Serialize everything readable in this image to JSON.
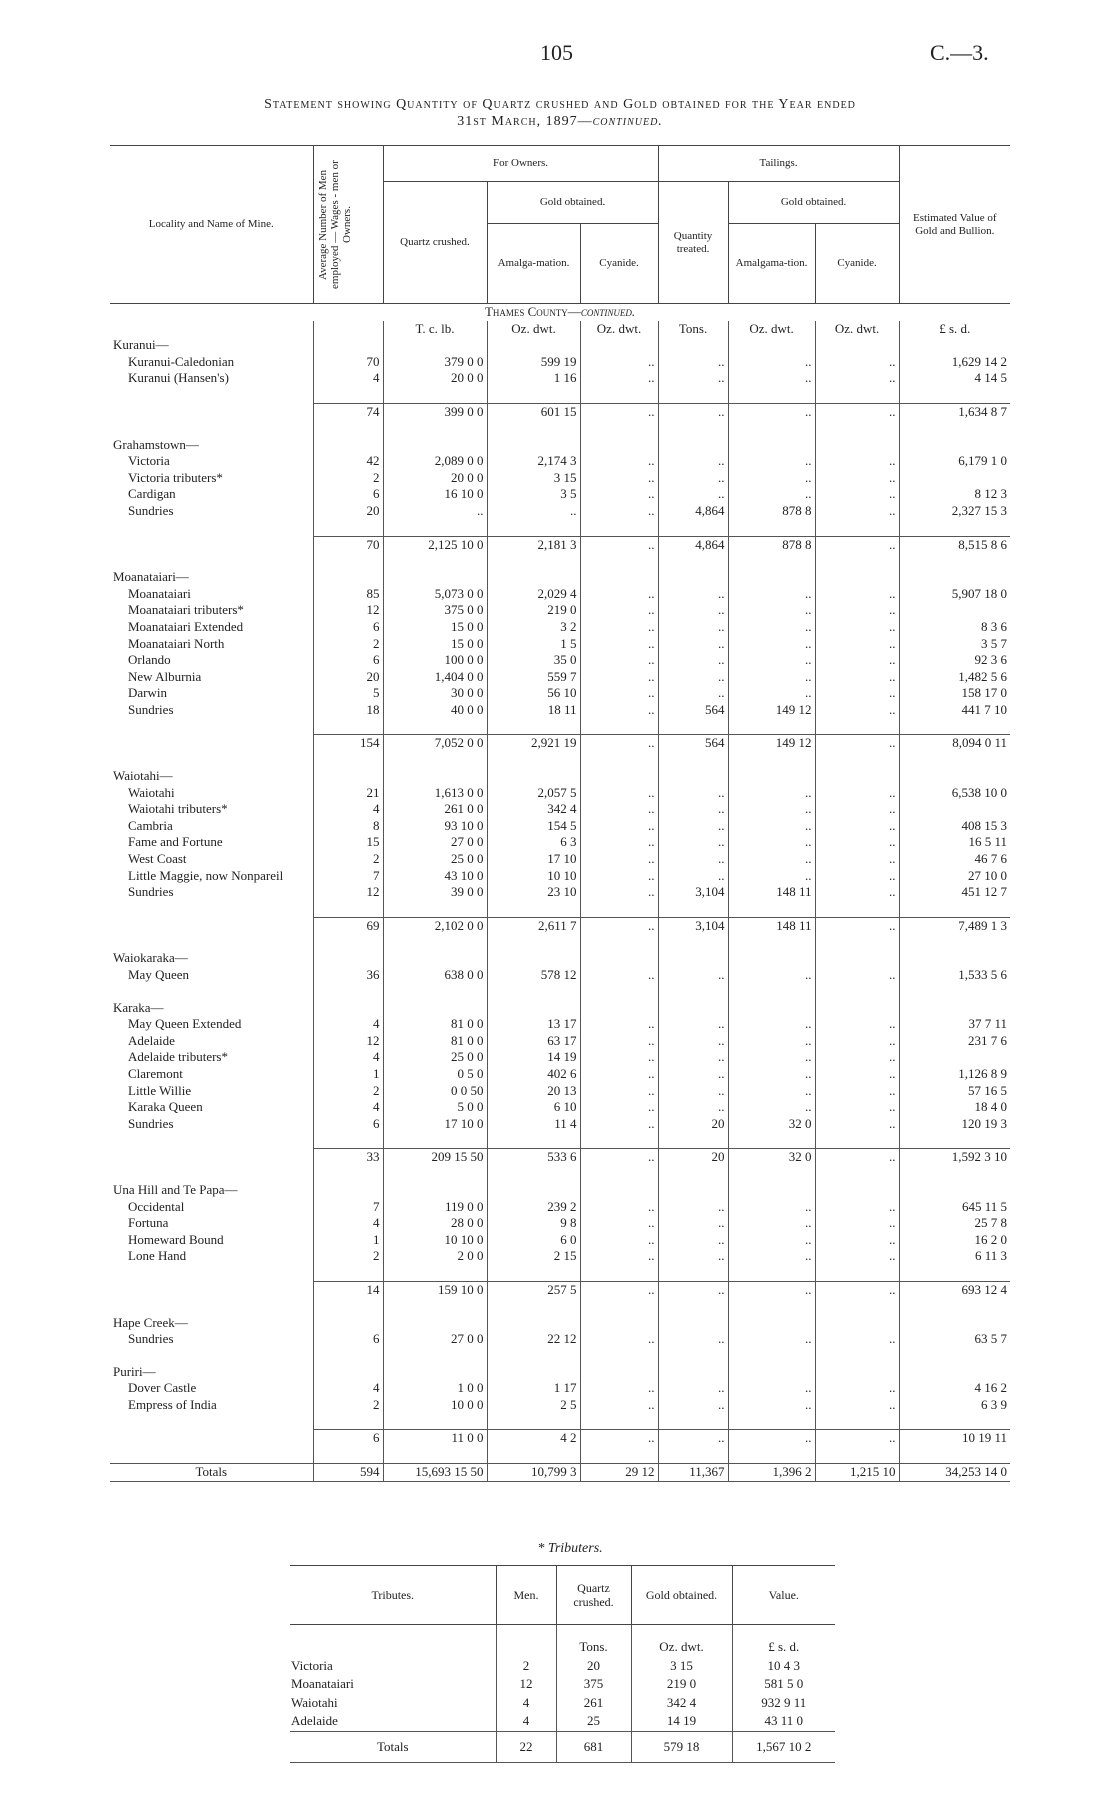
{
  "header": {
    "page_number": "105",
    "code": "C.—3.",
    "title": "Statement showing Quantity of Quartz crushed and Gold obtained for the Year ended",
    "title_date": "31st March, 1897—",
    "title_continued": "continued."
  },
  "table": {
    "headers": {
      "locality": "Locality and Name of Mine.",
      "men": "Average Number of Men employed — Wages - men or Owners.",
      "for_owners": "For Owners.",
      "quartz_crushed": "Quartz crushed.",
      "gold_obtained": "Gold obtained.",
      "amalgamation": "Amalga-mation.",
      "cyanide": "Cyanide.",
      "tailings": "Tailings.",
      "quantity_treated": "Quantity treated.",
      "tail_gold_obtained": "Gold obtained.",
      "tail_amalgamation": "Amalgama-tion.",
      "tail_cyanide": "Cyanide.",
      "estimated_value": "Estimated Value of Gold and Bullion."
    },
    "section": "Thames County—",
    "section_continued": "continued.",
    "units": [
      "T. c. lb.",
      "Oz. dwt.",
      "Oz. dwt.",
      "Tons.",
      "Oz. dwt.",
      "Oz. dwt.",
      "£ s. d."
    ],
    "groups": [
      {
        "name": "Kuranui—",
        "rows": [
          [
            "Kuranui-Caledonian",
            "70",
            "379 0 0",
            "599 19",
            "..",
            "..",
            "..",
            "..",
            "1,629 14 2"
          ],
          [
            "Kuranui (Hansen's)",
            "4",
            "20 0 0",
            "1 16",
            "..",
            "..",
            "..",
            "..",
            "4 14 5"
          ]
        ],
        "subtotal": [
          "74",
          "399 0 0",
          "601 15",
          "..",
          "..",
          "..",
          "..",
          "1,634 8 7"
        ]
      },
      {
        "name": "Grahamstown—",
        "rows": [
          [
            "Victoria",
            "42",
            "2,089 0 0",
            "2,174 3",
            "..",
            "..",
            "..",
            "..",
            "6,179 1 0"
          ],
          [
            "Victoria tributers*",
            "2",
            "20 0 0",
            "3 15",
            "..",
            "..",
            "..",
            "..",
            null
          ],
          [
            "Cardigan",
            "6",
            "16 10 0",
            "3 5",
            "..",
            "..",
            "..",
            "..",
            "8 12 3"
          ],
          [
            "Sundries",
            "20",
            "..",
            "..",
            "..",
            "4,864",
            "878 8",
            "..",
            "2,327 15 3"
          ]
        ],
        "subtotal": [
          "70",
          "2,125 10 0",
          "2,181 3",
          "..",
          "4,864",
          "878 8",
          "..",
          "8,515 8 6"
        ]
      },
      {
        "name": "Moanataiari—",
        "rows": [
          [
            "Moanataiari",
            "85",
            "5,073 0 0",
            "2,029 4",
            "..",
            "..",
            "..",
            "..",
            "5,907 18 0"
          ],
          [
            "Moanataiari tributers*",
            "12",
            "375 0 0",
            "219 0",
            "..",
            "..",
            "..",
            "..",
            null
          ],
          [
            "Moanataiari Extended",
            "6",
            "15 0 0",
            "3 2",
            "..",
            "..",
            "..",
            "..",
            "8 3 6"
          ],
          [
            "Moanataiari North",
            "2",
            "15 0 0",
            "1 5",
            "..",
            "..",
            "..",
            "..",
            "3 5 7"
          ],
          [
            "Orlando",
            "6",
            "100 0 0",
            "35 0",
            "..",
            "..",
            "..",
            "..",
            "92 3 6"
          ],
          [
            "New Alburnia",
            "20",
            "1,404 0 0",
            "559 7",
            "..",
            "..",
            "..",
            "..",
            "1,482 5 6"
          ],
          [
            "Darwin",
            "5",
            "30 0 0",
            "56 10",
            "..",
            "..",
            "..",
            "..",
            "158 17 0"
          ],
          [
            "Sundries",
            "18",
            "40 0 0",
            "18 11",
            "..",
            "564",
            "149 12",
            "..",
            "441 7 10"
          ]
        ],
        "subtotal": [
          "154",
          "7,052 0 0",
          "2,921 19",
          "..",
          "564",
          "149 12",
          "..",
          "8,094 0 11"
        ]
      },
      {
        "name": "Waiotahi—",
        "rows": [
          [
            "Waiotahi",
            "21",
            "1,613 0 0",
            "2,057 5",
            "..",
            "..",
            "..",
            "..",
            "6,538 10 0"
          ],
          [
            "Waiotahi tributers*",
            "4",
            "261 0 0",
            "342 4",
            "..",
            "..",
            "..",
            "..",
            null
          ],
          [
            "Cambria",
            "8",
            "93 10 0",
            "154 5",
            "..",
            "..",
            "..",
            "..",
            "408 15 3"
          ],
          [
            "Fame and Fortune",
            "15",
            "27 0 0",
            "6 3",
            "..",
            "..",
            "..",
            "..",
            "16 5 11"
          ],
          [
            "West Coast",
            "2",
            "25 0 0",
            "17 10",
            "..",
            "..",
            "..",
            "..",
            "46 7 6"
          ],
          [
            "Little Maggie, now Nonpareil",
            "7",
            "43 10 0",
            "10 10",
            "..",
            "..",
            "..",
            "..",
            "27 10 0"
          ],
          [
            "Sundries",
            "12",
            "39 0 0",
            "23 10",
            "..",
            "3,104",
            "148 11",
            "..",
            "451 12 7"
          ]
        ],
        "subtotal": [
          "69",
          "2,102 0 0",
          "2,611 7",
          "..",
          "3,104",
          "148 11",
          "..",
          "7,489 1 3"
        ]
      },
      {
        "name": "Waiokaraka—",
        "rows": [
          [
            "May Queen",
            "36",
            "638 0 0",
            "578 12",
            "..",
            "..",
            "..",
            "..",
            "1,533 5 6"
          ]
        ]
      },
      {
        "name": "Karaka—",
        "rows": [
          [
            "May Queen Extended",
            "4",
            "81 0 0",
            "13 17",
            "..",
            "..",
            "..",
            "..",
            "37 7 11"
          ],
          [
            "Adelaide",
            "12",
            "81 0 0",
            "63 17",
            "..",
            "..",
            "..",
            "..",
            "231 7 6"
          ],
          [
            "Adelaide tributers*",
            "4",
            "25 0 0",
            "14 19",
            "..",
            "..",
            "..",
            "..",
            null
          ],
          [
            "Claremont",
            "1",
            "0 5 0",
            "402 6",
            "..",
            "..",
            "..",
            "..",
            "1,126 8 9"
          ],
          [
            "Little Willie",
            "2",
            "0 0 50",
            "20 13",
            "..",
            "..",
            "..",
            "..",
            "57 16 5"
          ],
          [
            "Karaka Queen",
            "4",
            "5 0 0",
            "6 10",
            "..",
            "..",
            "..",
            "..",
            "18 4 0"
          ],
          [
            "Sundries",
            "6",
            "17 10 0",
            "11 4",
            "..",
            "20",
            "32 0",
            "..",
            "120 19 3"
          ]
        ],
        "subtotal": [
          "33",
          "209 15 50",
          "533 6",
          "..",
          "20",
          "32 0",
          "..",
          "1,592 3 10"
        ]
      },
      {
        "name": "Una Hill and Te Papa—",
        "rows": [
          [
            "Occidental",
            "7",
            "119 0 0",
            "239 2",
            "..",
            "..",
            "..",
            "..",
            "645 11 5"
          ],
          [
            "Fortuna",
            "4",
            "28 0 0",
            "9 8",
            "..",
            "..",
            "..",
            "..",
            "25 7 8"
          ],
          [
            "Homeward Bound",
            "1",
            "10 10 0",
            "6 0",
            "..",
            "..",
            "..",
            "..",
            "16 2 0"
          ],
          [
            "Lone Hand",
            "2",
            "2 0 0",
            "2 15",
            "..",
            "..",
            "..",
            "..",
            "6 11 3"
          ]
        ],
        "subtotal": [
          "14",
          "159 10 0",
          "257 5",
          "..",
          "..",
          "..",
          "..",
          "693 12 4"
        ]
      },
      {
        "name": "Hape Creek—",
        "rows": [
          [
            "Sundries",
            "6",
            "27 0 0",
            "22 12",
            "..",
            "..",
            "..",
            "..",
            "63 5 7"
          ]
        ]
      },
      {
        "name": "Puriri—",
        "rows": [
          [
            "Dover Castle",
            "4",
            "1 0 0",
            "1 17",
            "..",
            "..",
            "..",
            "..",
            "4 16 2"
          ],
          [
            "Empress of India",
            "2",
            "10 0 0",
            "2 5",
            "..",
            "..",
            "..",
            "..",
            "6 3 9"
          ]
        ],
        "subtotal": [
          "6",
          "11 0 0",
          "4 2",
          "..",
          "..",
          "..",
          "..",
          "10 19 11"
        ]
      }
    ],
    "totals": [
      "Totals",
      "594",
      "15,693 15 50",
      "10,799 3",
      "29 12",
      "11,367",
      "1,396 2",
      "1,215 10",
      "34,253 14 0"
    ]
  },
  "tributes": {
    "caption": "* Tributers.",
    "headers": [
      "Tributes.",
      "Men.",
      "Quartz crushed.",
      "Gold obtained.",
      "Value."
    ],
    "units": [
      "Tons.",
      "Oz. dwt.",
      "£ s. d."
    ],
    "rows": [
      [
        "Victoria",
        "2",
        "20",
        "3 15",
        "10 4 3"
      ],
      [
        "Moanataiari",
        "12",
        "375",
        "219 0",
        "581 5 0"
      ],
      [
        "Waiotahi",
        "4",
        "261",
        "342 4",
        "932 9 11"
      ],
      [
        "Adelaide",
        "4",
        "25",
        "14 19",
        "43 11 0"
      ]
    ],
    "totals": [
      "Totals",
      "22",
      "681",
      "579 18",
      "1,567 10 2"
    ]
  }
}
